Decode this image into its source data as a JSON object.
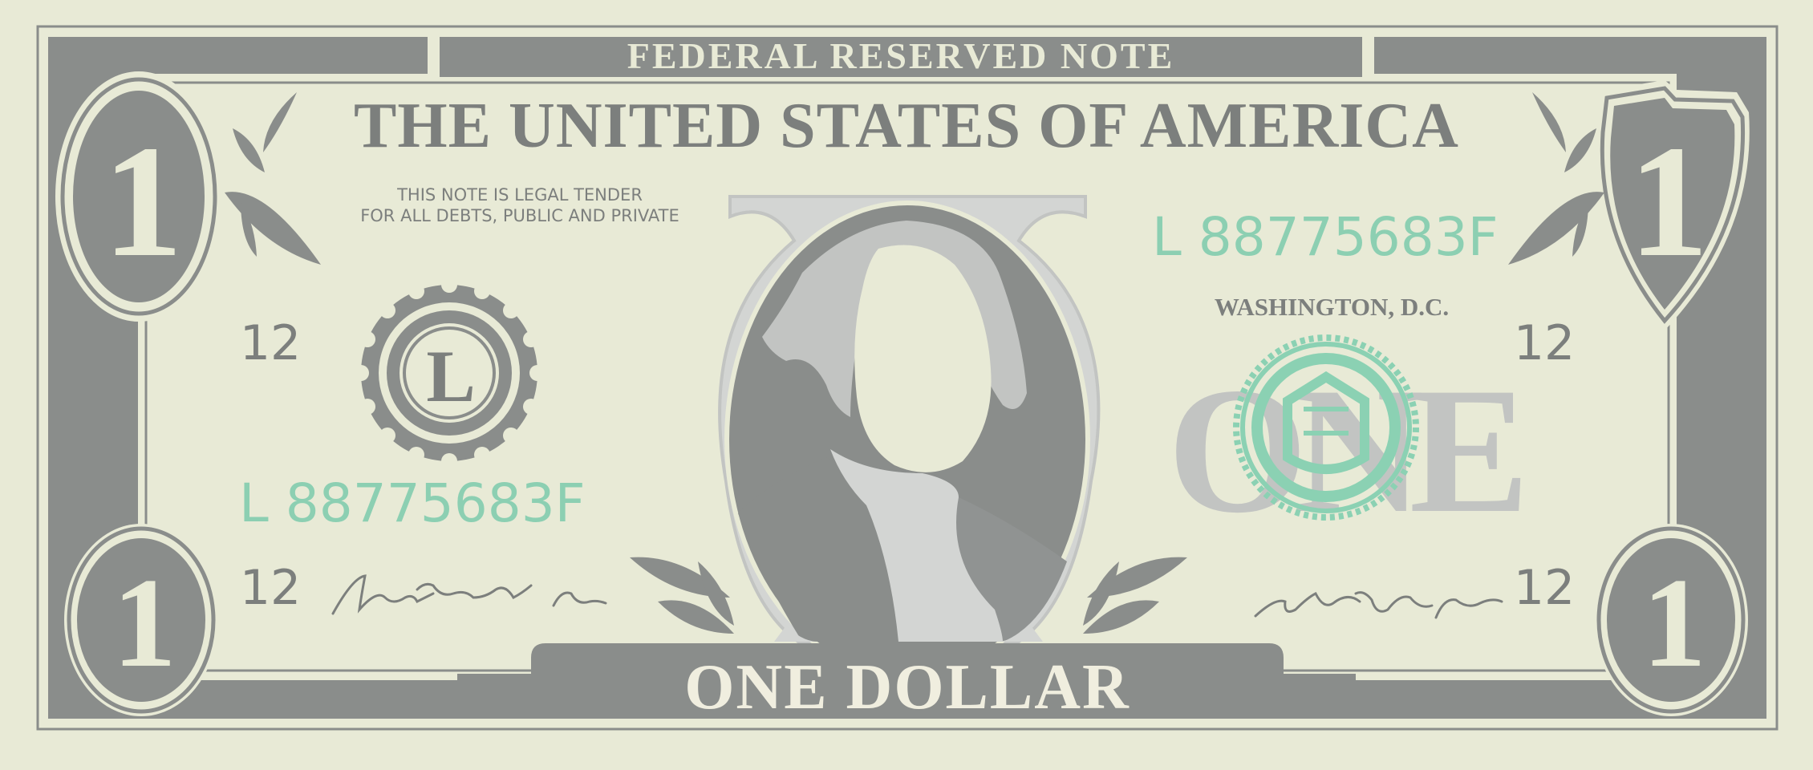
{
  "colors": {
    "paper": "#e8ead6",
    "ink": "#8a8d8b",
    "ink_dark": "#7c7f7d",
    "serial": "#8ccfb2",
    "seal_green": "#8bd1b3",
    "ghost": "#c2c4c2",
    "light_gray": "#d3d5d3"
  },
  "note": {
    "banner_text": "FEDERAL RESERVED NOTE",
    "country": "THE UNITED STATES OF AMERICA",
    "legal_tender_line1": "THIS NOTE IS LEGAL TENDER",
    "legal_tender_line2": "FOR ALL DEBTS, PUBLIC AND PRIVATE",
    "serial_left": "L 88775683F",
    "serial_right": "L 88775683F",
    "city": "WASHINGTON, D.C.",
    "denomination_word": "ONE",
    "denomination_text": "ONE DOLLAR",
    "seal_letter": "L",
    "corner_digit": "1",
    "district_number": "12"
  },
  "icons": [
    "laurel-icon",
    "portrait-icon",
    "seal-icon",
    "signature-icon"
  ]
}
